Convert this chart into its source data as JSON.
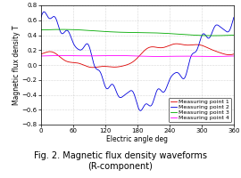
{
  "title": "Fig. 2. Magnetic flux density waveforms\n(R-component)",
  "xlabel": "Electric angle deg",
  "ylabel": "Magnetic flux density T",
  "xlim": [
    0,
    360
  ],
  "ylim": [
    -0.8,
    0.8
  ],
  "xticks": [
    0,
    60,
    120,
    180,
    240,
    300,
    360
  ],
  "yticks": [
    -0.8,
    -0.6,
    -0.4,
    -0.2,
    0.0,
    0.2,
    0.4,
    0.6,
    0.8
  ],
  "colors": {
    "mp1": "#dd0000",
    "mp2": "#0000dd",
    "mp3": "#00aa00",
    "mp4": "#ff00ff"
  },
  "legend_labels": [
    "Measuring point 1",
    "Measuring point 2",
    "Measuring point 3",
    "Measuring point 4"
  ],
  "bg_color": "#ffffff",
  "plot_bg": "#ffffff",
  "title_fontsize": 7,
  "axis_fontsize": 5.5,
  "tick_fontsize": 5,
  "legend_fontsize": 4.5
}
